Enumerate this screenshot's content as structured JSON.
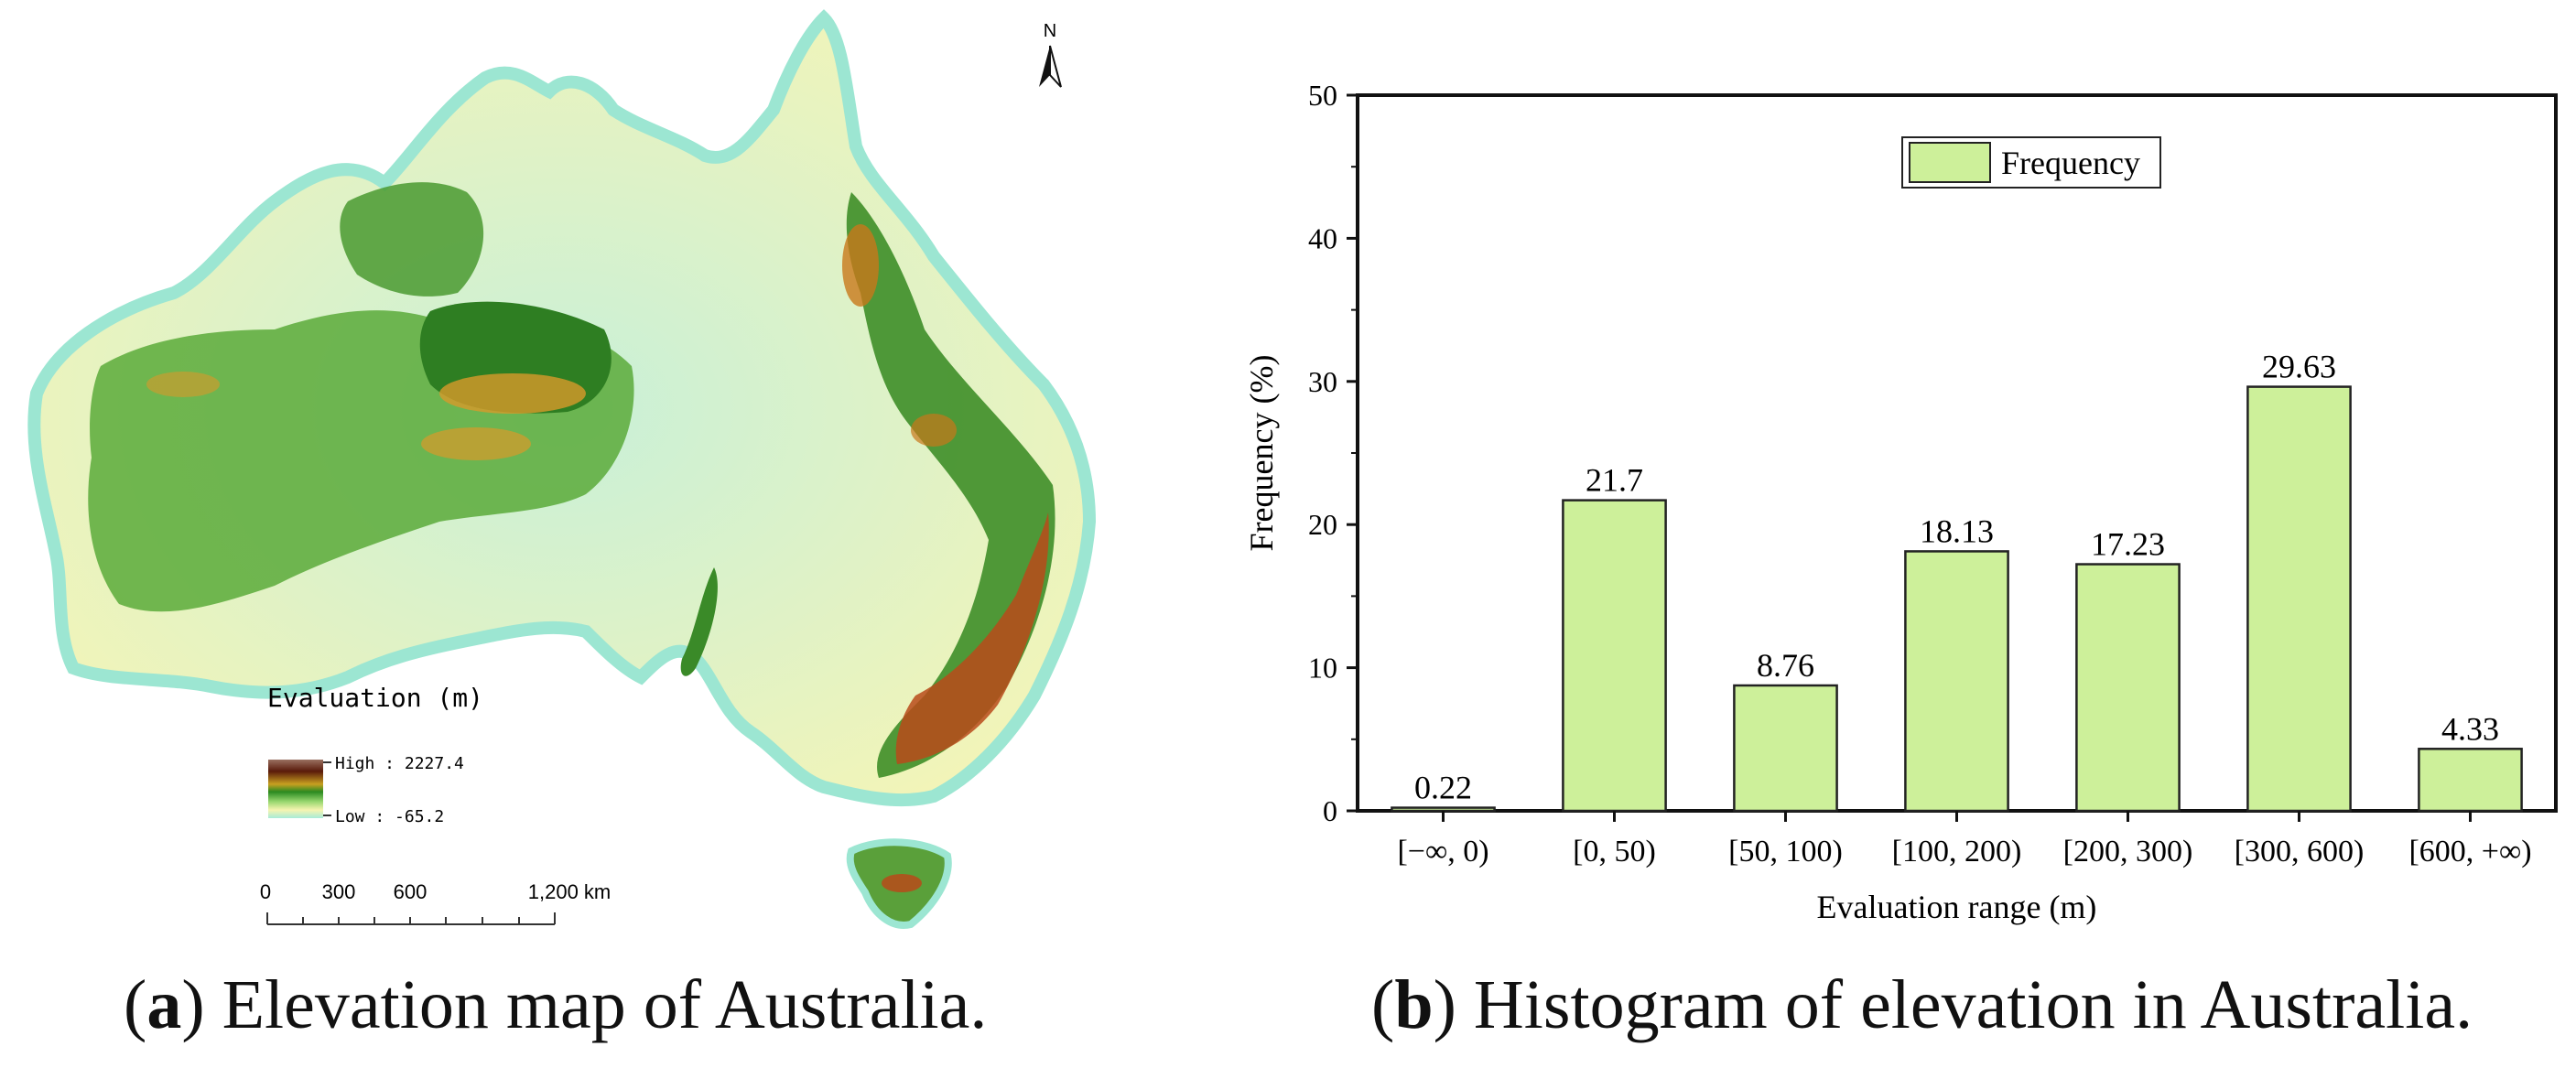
{
  "panel_a": {
    "caption_letter": "a",
    "caption_text": "Elevation map of Australia.",
    "north_label": "N",
    "legend": {
      "title": "Evaluation (m)",
      "high_label": "High : 2227.4",
      "low_label": "Low : -65.2",
      "colors": [
        "#8a5a4a",
        "#5a1a0a",
        "#c8a020",
        "#2a8a20",
        "#9ad870",
        "#f6f4b0",
        "#a8ecd8"
      ]
    },
    "scale_bar": {
      "labels": [
        "0",
        "300",
        "600",
        "1,200 km"
      ]
    }
  },
  "panel_b": {
    "caption_letter": "b",
    "caption_text": "Histogram of elevation in Australia."
  },
  "chart_data": {
    "type": "bar",
    "categories": [
      "[−∞, 0)",
      "[0, 50)",
      "[50, 100)",
      "[100, 200)",
      "[200, 300)",
      "[300, 600)",
      "[600, +∞)"
    ],
    "series": [
      {
        "name": "Frequency",
        "values": [
          0.22,
          21.7,
          8.76,
          18.13,
          17.23,
          29.63,
          4.33
        ]
      }
    ],
    "value_labels": [
      "0.22",
      "21.7",
      "8.76",
      "18.13",
      "17.23",
      "29.63",
      "4.33"
    ],
    "title": "",
    "xlabel": "Evaluation range (m)",
    "ylabel": "Frequency (%)",
    "ylim": [
      0,
      50
    ],
    "yticks": [
      0,
      10,
      20,
      30,
      40,
      50
    ],
    "legend_position": "top-center",
    "grid": false,
    "bar_color": "#cdf09a",
    "bar_edge_color": "#222222"
  }
}
